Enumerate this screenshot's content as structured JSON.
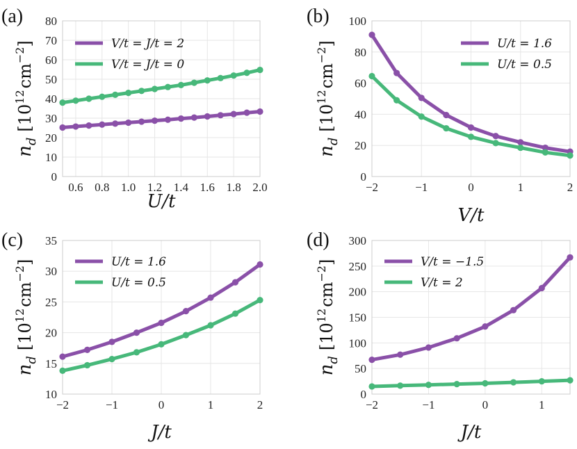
{
  "colors": {
    "purple": "#8a50a8",
    "green": "#47b87a"
  },
  "chart_data": [
    {
      "type": "line",
      "panel": "(a)",
      "xlabel": "U/t",
      "ylabel": "n_d [10^12 cm^-2]",
      "ylabel_parts": {
        "sym": "n",
        "sub": "d",
        "pre": "[10",
        "exp1": "12",
        "mid": "cm",
        "exp2": "−2",
        "post": "]"
      },
      "xlim": [
        0.5,
        2.0
      ],
      "ylim": [
        0,
        80
      ],
      "xticks": [
        0.6,
        0.8,
        1.0,
        1.2,
        1.4,
        1.6,
        1.8,
        2.0
      ],
      "xtick_labels": [
        "0.6",
        "0.8",
        "1.0",
        "1.2",
        "1.4",
        "1.6",
        "1.8",
        "2.0"
      ],
      "yticks": [
        0,
        10,
        20,
        30,
        40,
        50,
        60,
        70,
        80
      ],
      "ytick_labels": [
        "0",
        "10",
        "20",
        "30",
        "40",
        "50",
        "60",
        "70",
        "80"
      ],
      "x": [
        0.5,
        0.6,
        0.7,
        0.8,
        0.9,
        1.0,
        1.1,
        1.2,
        1.3,
        1.4,
        1.5,
        1.6,
        1.7,
        1.8,
        1.9,
        2.0
      ],
      "series": [
        {
          "name": "V/t = J/t = 2",
          "color": "purple",
          "values": [
            25.2,
            25.7,
            26.2,
            26.7,
            27.2,
            27.7,
            28.2,
            28.7,
            29.2,
            29.8,
            30.3,
            30.9,
            31.5,
            32.1,
            32.8,
            33.4
          ]
        },
        {
          "name": "V/t = J/t = 0",
          "color": "green",
          "values": [
            38.0,
            39.0,
            40.0,
            41.0,
            42.0,
            43.0,
            44.0,
            45.0,
            46.0,
            47.0,
            48.2,
            49.4,
            50.6,
            51.9,
            53.3,
            54.8
          ]
        }
      ]
    },
    {
      "type": "line",
      "panel": "(b)",
      "xlabel": "V/t",
      "ylabel": "n_d [10^12 cm^-2]",
      "ylabel_parts": {
        "sym": "n",
        "sub": "d",
        "pre": "[10",
        "exp1": "12",
        "mid": "cm",
        "exp2": "−2",
        "post": "]"
      },
      "xlim": [
        -2,
        2
      ],
      "ylim": [
        0,
        100
      ],
      "xticks": [
        -2,
        -1,
        0,
        1,
        2
      ],
      "xtick_labels": [
        "−2",
        "−1",
        "0",
        "1",
        "2"
      ],
      "yticks": [
        0,
        20,
        40,
        60,
        80,
        100
      ],
      "ytick_labels": [
        "0",
        "20",
        "40",
        "60",
        "80",
        "100"
      ],
      "x": [
        -2,
        -1.5,
        -1,
        -0.5,
        0,
        0.5,
        1,
        1.5,
        2
      ],
      "series": [
        {
          "name": "U/t = 1.6",
          "color": "purple",
          "values": [
            91,
            66.5,
            50.5,
            39.5,
            31.5,
            26,
            22,
            18.5,
            16
          ]
        },
        {
          "name": "U/t = 0.5",
          "color": "green",
          "values": [
            64.5,
            49,
            38.5,
            31,
            25.5,
            21.5,
            18.5,
            15.5,
            13.5
          ]
        }
      ]
    },
    {
      "type": "line",
      "panel": "(c)",
      "xlabel": "J/t",
      "ylabel": "n_d [10^12 cm^-2]",
      "ylabel_parts": {
        "sym": "n",
        "sub": "d",
        "pre": "[10",
        "exp1": "12",
        "mid": "cm",
        "exp2": "−2",
        "post": "]"
      },
      "xlim": [
        -2,
        2
      ],
      "ylim": [
        10,
        35
      ],
      "xticks": [
        -2,
        -1,
        0,
        1,
        2
      ],
      "xtick_labels": [
        "−2",
        "−1",
        "0",
        "1",
        "2"
      ],
      "yticks": [
        10,
        15,
        20,
        25,
        30,
        35
      ],
      "ytick_labels": [
        "10",
        "15",
        "20",
        "25",
        "30",
        "35"
      ],
      "x": [
        -2,
        -1.5,
        -1,
        -0.5,
        0,
        0.5,
        1,
        1.5,
        2
      ],
      "series": [
        {
          "name": "U/t = 1.6",
          "color": "purple",
          "values": [
            16.1,
            17.2,
            18.5,
            20.0,
            21.6,
            23.5,
            25.7,
            28.2,
            31.1
          ]
        },
        {
          "name": "U/t = 0.5",
          "color": "green",
          "values": [
            13.8,
            14.7,
            15.7,
            16.8,
            18.1,
            19.6,
            21.2,
            23.1,
            25.3
          ]
        }
      ]
    },
    {
      "type": "line",
      "panel": "(d)",
      "xlabel": "J/t",
      "ylabel": "n_d [10^12 cm^-2]",
      "ylabel_parts": {
        "sym": "n",
        "sub": "d",
        "pre": "[10",
        "exp1": "12",
        "mid": "cm",
        "exp2": "−2",
        "post": "]"
      },
      "xlim": [
        -2,
        1.5
      ],
      "ylim": [
        0,
        300
      ],
      "xticks": [
        -2,
        -1,
        0,
        1
      ],
      "xtick_labels": [
        "−2",
        "−1",
        "0",
        "1"
      ],
      "yticks": [
        0,
        50,
        100,
        150,
        200,
        250,
        300
      ],
      "ytick_labels": [
        "0",
        "50",
        "100",
        "150",
        "200",
        "250",
        "300"
      ],
      "x": [
        -2,
        -1.5,
        -1,
        -0.5,
        0,
        0.5,
        1,
        1.5
      ],
      "series": [
        {
          "name": "V/t = −1.5",
          "color": "purple",
          "values": [
            67,
            77,
            91,
            109,
            132,
            164,
            207,
            267
          ]
        },
        {
          "name": "V/t = 2",
          "color": "green",
          "values": [
            15,
            16.5,
            18,
            19.5,
            21,
            23,
            25,
            27
          ]
        }
      ]
    }
  ]
}
